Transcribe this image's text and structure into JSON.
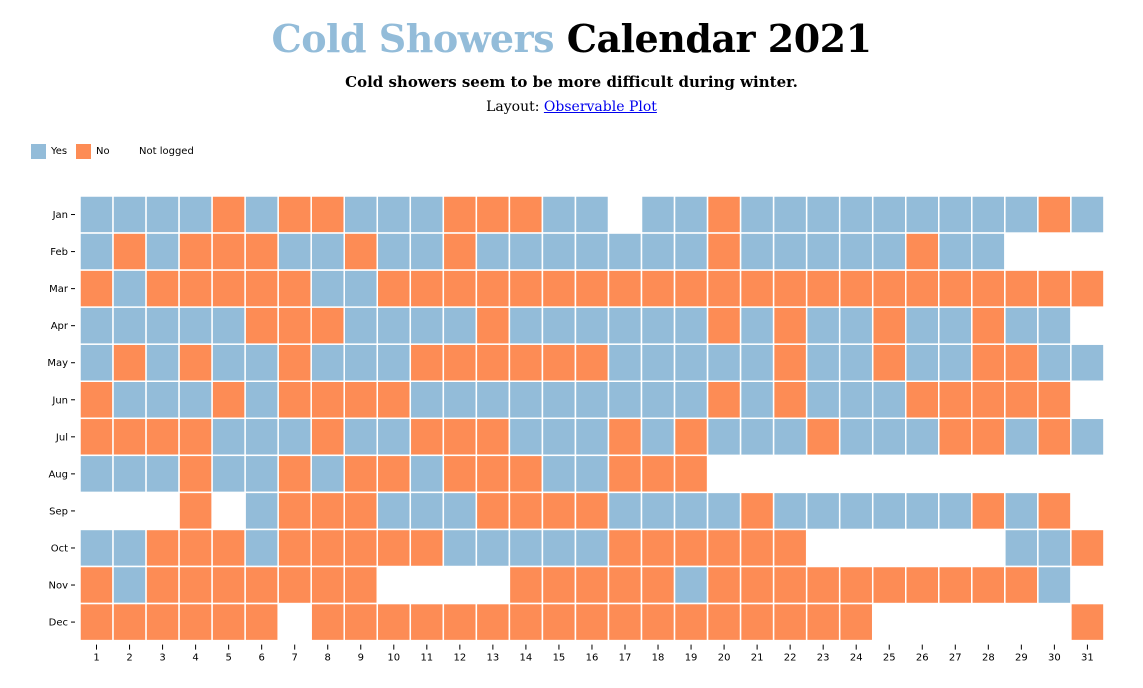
{
  "title": {
    "accent": "Cold Showers",
    "rest": "Calendar 2021"
  },
  "subtitle": "Cold showers seem to be more difficult during winter.",
  "layout": {
    "prefix": "Layout:",
    "link_text": "Observable Plot"
  },
  "legend": [
    {
      "label": "Yes",
      "color": "#93bcd9"
    },
    {
      "label": "No",
      "color": "#fd8c55"
    },
    {
      "label": "Not logged",
      "color": "#ffffff"
    }
  ],
  "chart_data": {
    "type": "heatmap",
    "title": "Cold Showers Calendar 2021",
    "x": [
      "1",
      "2",
      "3",
      "4",
      "5",
      "6",
      "7",
      "8",
      "9",
      "10",
      "11",
      "12",
      "13",
      "14",
      "15",
      "16",
      "17",
      "18",
      "19",
      "20",
      "21",
      "22",
      "23",
      "24",
      "25",
      "26",
      "27",
      "28",
      "29",
      "30",
      "31"
    ],
    "y": [
      "Jan",
      "Feb",
      "Mar",
      "Apr",
      "May",
      "Jun",
      "Jul",
      "Aug",
      "Sep",
      "Oct",
      "Nov",
      "Dec"
    ],
    "encoding": {
      "Y": "Yes",
      "N": "No",
      "-": "Not logged"
    },
    "rows": [
      "YYYYNYNNYYYNNNYY-YYNYYYYYYYYYNY",
      "YNYNNNYYNYYNYYYYYYYNYYYYYNYY",
      "NYNNNNNYYNNNNNNNNNNNNNNNNNNNNNN",
      "YYYYYNNNYYYYNYYYYYYNYNYYNYYNYY",
      "YNYNYYNYYYNNNNNNYYYYYNYYNYYNNYY",
      "NYYYNYNNNNYYYYYYYYYNYNYYYNNNNN",
      "NNNNYYYNYYNNNYYYNYNYYYNYYYNNYNY",
      "YYYNYYNYNNYNNNYYNNN------------",
      "---N-YNNNYYYNNNNYYYYNYYYYYYNYN",
      "YYNNNYNNNNNYYYYYNNNNNN------YYN",
      "NYNNNNNNN----NNNNNYNNNNNNNNNNY",
      "NNNNNN-NNNNNNNNNNNNNNNNN------N"
    ]
  }
}
